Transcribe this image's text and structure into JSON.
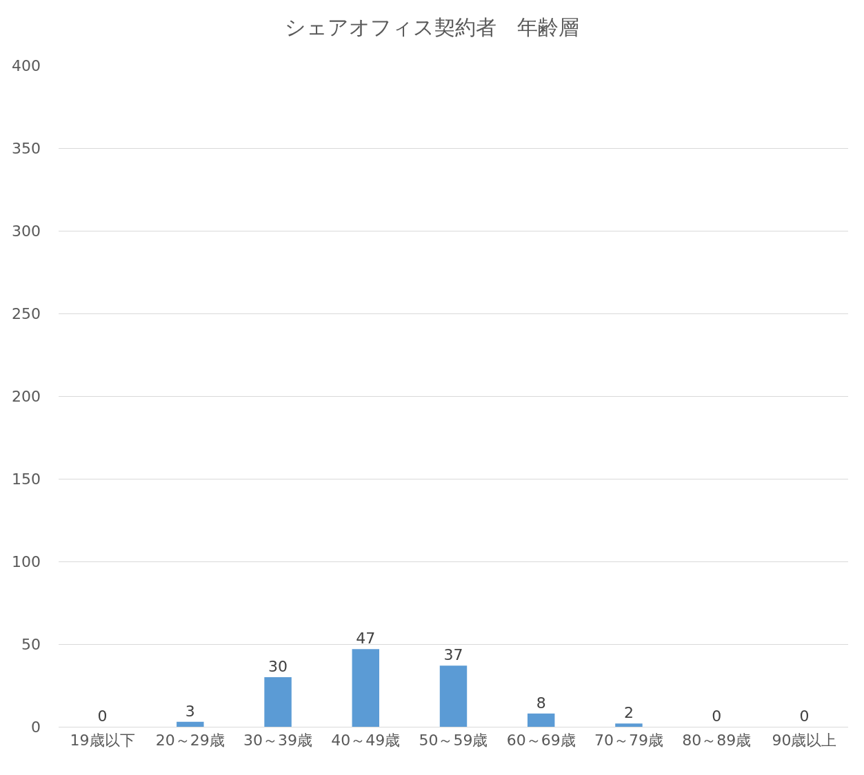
{
  "chart_data": {
    "type": "bar",
    "title": "シェアオフィス契約者　年齢層",
    "categories": [
      "19歳以下",
      "20～29歳",
      "30～39歳",
      "40～49歳",
      "50～59歳",
      "60～69歳",
      "70～79歳",
      "80～89歳",
      "90歳以上"
    ],
    "values": [
      0,
      3,
      30,
      47,
      37,
      8,
      2,
      0,
      0
    ],
    "color": "#5b9bd5",
    "ylim": [
      0,
      400
    ],
    "yticks": [
      0,
      50,
      100,
      150,
      200,
      250,
      300,
      350,
      400
    ],
    "grid": "y",
    "data_labels": true,
    "legend": false
  }
}
